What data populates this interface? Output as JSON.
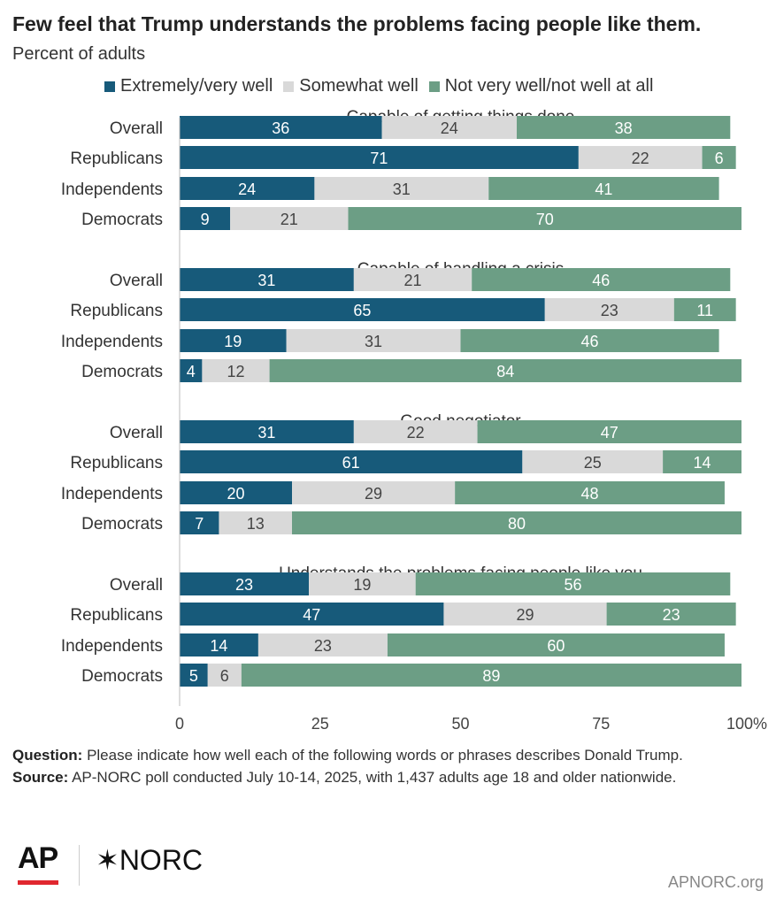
{
  "header": {
    "title": "Few feel that Trump understands the problems facing people like them.",
    "subtitle": "Percent of adults"
  },
  "legend": [
    {
      "label": "Extremely/very well",
      "color": "#175a7a"
    },
    {
      "label": "Somewhat well",
      "color": "#d9d9d9"
    },
    {
      "label": "Not very well/not well at all",
      "color": "#6c9e85"
    }
  ],
  "chart_data": {
    "type": "bar",
    "orientation": "horizontal",
    "stacked": true,
    "xlim": [
      0,
      100
    ],
    "x_ticks": [
      "0",
      "25",
      "50",
      "75",
      "100%"
    ],
    "groups": [
      {
        "title": "Capable of getting things done",
        "rows": [
          {
            "label": "Overall",
            "values": [
              36,
              24,
              38
            ]
          },
          {
            "label": "Republicans",
            "values": [
              71,
              22,
              6
            ]
          },
          {
            "label": "Independents",
            "values": [
              24,
              31,
              41
            ]
          },
          {
            "label": "Democrats",
            "values": [
              9,
              21,
              70
            ]
          }
        ]
      },
      {
        "title": "Capable of handling a crisis",
        "rows": [
          {
            "label": "Overall",
            "values": [
              31,
              21,
              46
            ]
          },
          {
            "label": "Republicans",
            "values": [
              65,
              23,
              11
            ]
          },
          {
            "label": "Independents",
            "values": [
              19,
              31,
              46
            ]
          },
          {
            "label": "Democrats",
            "values": [
              4,
              12,
              84
            ]
          }
        ]
      },
      {
        "title": "Good negotiator",
        "rows": [
          {
            "label": "Overall",
            "values": [
              31,
              22,
              47
            ]
          },
          {
            "label": "Republicans",
            "values": [
              61,
              25,
              14
            ]
          },
          {
            "label": "Independents",
            "values": [
              20,
              29,
              48
            ]
          },
          {
            "label": "Democrats",
            "values": [
              7,
              13,
              80
            ]
          }
        ]
      },
      {
        "title": "Understands the problems facing people like you",
        "rows": [
          {
            "label": "Overall",
            "values": [
              23,
              19,
              56
            ]
          },
          {
            "label": "Republicans",
            "values": [
              47,
              29,
              23
            ]
          },
          {
            "label": "Independents",
            "values": [
              14,
              23,
              60
            ]
          },
          {
            "label": "Democrats",
            "values": [
              5,
              6,
              89
            ]
          }
        ]
      }
    ]
  },
  "notes": {
    "question_label": "Question:",
    "question_text": " Please indicate how well each of the following words or phrases describes Donald Trump.",
    "source_label": "Source:",
    "source_text": " AP-NORC poll conducted July 10-14, 2025, with 1,437 adults age 18 and older nationwide."
  },
  "footer": {
    "logo_ap": "AP",
    "logo_norc": "✶NORC",
    "site": "APNORC.org"
  }
}
